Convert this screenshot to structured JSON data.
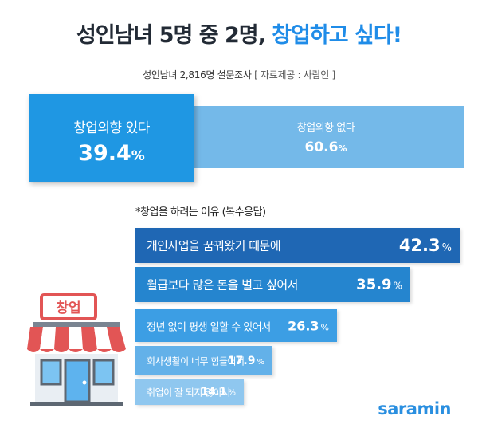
{
  "header": {
    "title_part1": "성인남녀 5명 중 2명, ",
    "title_part2": "창업하고 싶다!",
    "subtitle": "성인남녀 2,816명 설문조사",
    "source": "[ 자료제공 : 사람인 ]"
  },
  "chart_data": [
    {
      "type": "bar",
      "categories": [
        "창업의향 있다",
        "창업의향 없다"
      ],
      "values": [
        39.4,
        60.6
      ],
      "unit": "%"
    },
    {
      "type": "bar",
      "title": "*창업을 하려는 이유 (복수응답)",
      "categories": [
        "개인사업을 꿈꿔왔기 때문에",
        "월급보다 많은 돈을 벌고 싶어서",
        "정년 없이 평생 일할 수 있어서",
        "회사생활이 너무 힘들어서",
        "취업이 잘 되지 않아서"
      ],
      "values": [
        42.3,
        35.9,
        26.3,
        17.9,
        14.1
      ],
      "unit": "%"
    }
  ],
  "intent": {
    "yes_label": "창업의향 있다",
    "yes_value": "39.4",
    "no_label": "창업의향 없다",
    "no_value": "60.6",
    "unit": "%"
  },
  "reasons": {
    "title": "*창업을 하려는 이유 (복수응답)",
    "items": [
      {
        "label": "개인사업을 꿈꿔왔기 때문에",
        "value": "42.3"
      },
      {
        "label": "월급보다 많은 돈을 벌고 싶어서",
        "value": "35.9"
      },
      {
        "label": "정년 없이 평생 일할 수 있어서",
        "value": "26.3"
      },
      {
        "label": "회사생활이 너무 힘들어서",
        "value": "17.9"
      },
      {
        "label": "취업이 잘 되지 않아서",
        "value": "14.1"
      }
    ],
    "unit": "%"
  },
  "illustration": {
    "sign_text": "창업",
    "icon": "storefront-icon"
  },
  "brand": {
    "logo_text": "saramin"
  },
  "colors": {
    "accent": "#1f8ce8",
    "title_dark": "#222a35",
    "yes_box": "#1f97e3",
    "no_box": "#74b9e9",
    "bars": [
      "#1f67b4",
      "#2585cf",
      "#3c9ee4",
      "#63b1e9",
      "#8fc7ef"
    ]
  }
}
